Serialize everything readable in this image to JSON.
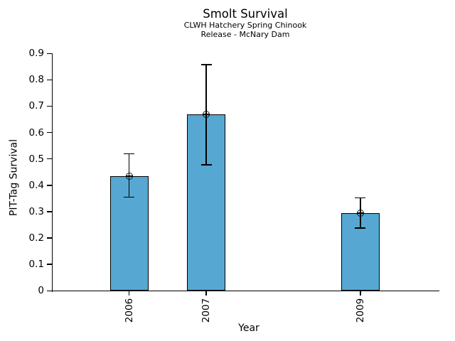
{
  "chart_data": {
    "type": "bar",
    "title": "Smolt Survival",
    "subtitle_lines": [
      "CLWH Hatchery Spring Chinook",
      "Release - McNary Dam"
    ],
    "xlabel": "Year",
    "ylabel": "PIT-Tag Survival",
    "categories": [
      "2006",
      "2007",
      "2009"
    ],
    "x_positions": [
      2006,
      2007,
      2009
    ],
    "values": [
      0.435,
      0.67,
      0.294
    ],
    "error_low": [
      0.355,
      0.478,
      0.238
    ],
    "error_high": [
      0.52,
      0.858,
      0.353
    ],
    "marker": "circle-plus",
    "bar_width_years": 0.5,
    "xlim": [
      2005,
      2010
    ],
    "ylim": [
      0,
      0.9
    ],
    "y_ticks": [
      "0",
      "0.1",
      "0.2",
      "0.3",
      "0.4",
      "0.5",
      "0.6",
      "0.7",
      "0.8",
      "0.9"
    ],
    "y_tick_values": [
      0,
      0.1,
      0.2,
      0.3,
      0.4,
      0.5,
      0.6,
      0.7,
      0.8,
      0.9
    ],
    "grid": false,
    "legend": "none",
    "bar_color": "#56A8D2",
    "bar_edge_color": "#000000",
    "error_color": "#000000",
    "text_color": "#000000",
    "background_color": "#ffffff"
  }
}
